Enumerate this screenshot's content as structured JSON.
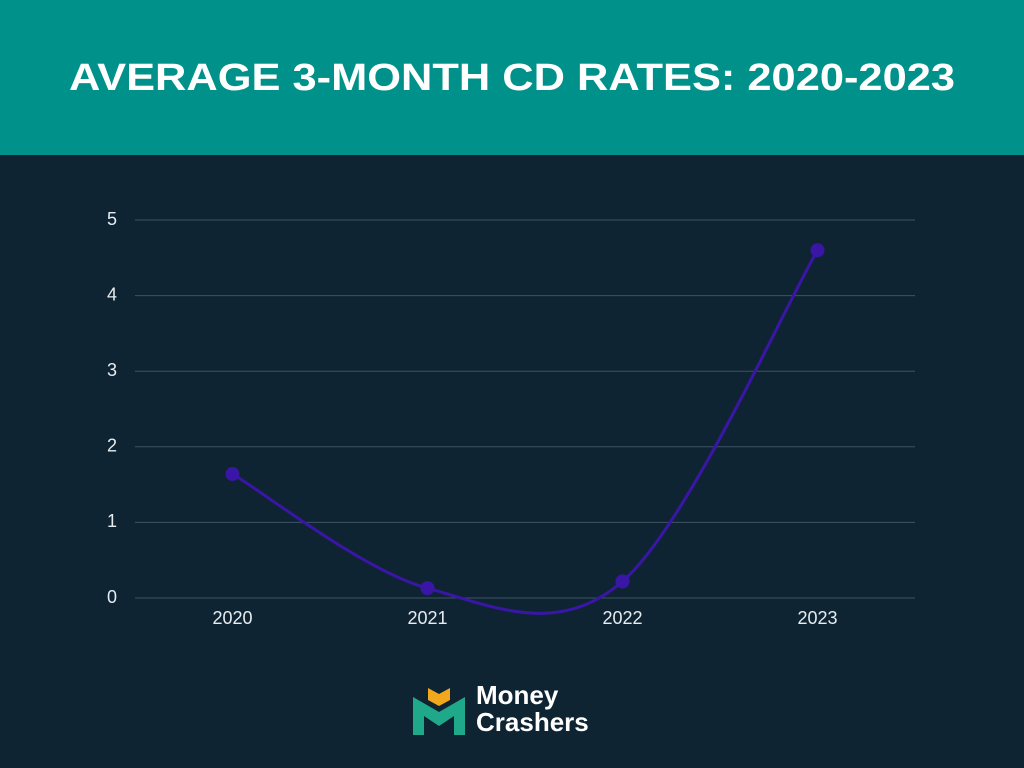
{
  "chart_data": {
    "type": "line",
    "title": "AVERAGE 3-MONTH CD RATES: 2020-2023",
    "categories": [
      "2020",
      "2021",
      "2022",
      "2023"
    ],
    "values": [
      1.64,
      0.13,
      0.22,
      4.6
    ],
    "color": "#3a16a6",
    "ylim": [
      0,
      5
    ],
    "yticks": [
      0,
      1,
      2,
      3,
      4,
      5
    ],
    "grid": true,
    "smooth": true
  },
  "logo": {
    "line1": "Money",
    "line2": "Crashers"
  }
}
